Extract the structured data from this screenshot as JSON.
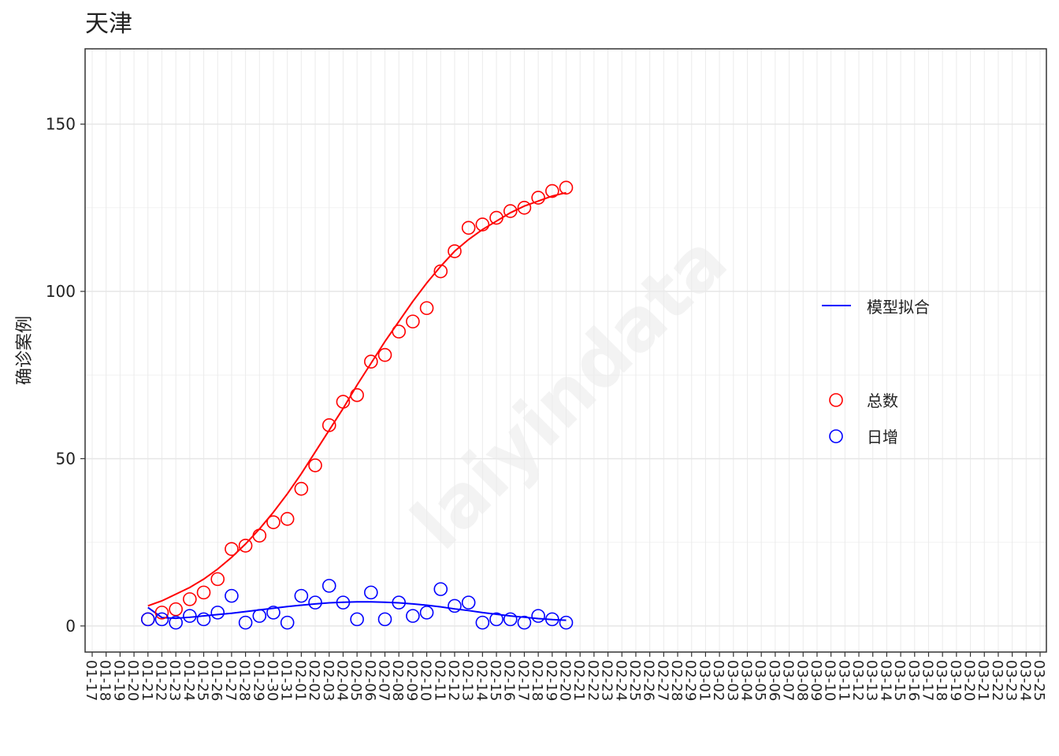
{
  "chart_data": {
    "type": "scatter",
    "title": "天津",
    "y_label": "确诊案例",
    "watermark": "laiyindata",
    "categories": [
      "01-17",
      "01-18",
      "01-19",
      "01-20",
      "01-21",
      "01-22",
      "01-23",
      "01-24",
      "01-25",
      "01-26",
      "01-27",
      "01-28",
      "01-29",
      "01-30",
      "01-31",
      "02-01",
      "02-02",
      "02-03",
      "02-04",
      "02-05",
      "02-06",
      "02-07",
      "02-08",
      "02-09",
      "02-10",
      "02-11",
      "02-12",
      "02-13",
      "02-14",
      "02-15",
      "02-16",
      "02-17",
      "02-18",
      "02-19",
      "02-20",
      "02-21",
      "02-22",
      "02-23",
      "02-24",
      "02-25",
      "02-26",
      "02-27",
      "02-28",
      "02-29",
      "03-01",
      "03-02",
      "03-03",
      "03-04",
      "03-05",
      "03-06",
      "03-07",
      "03-08",
      "03-09",
      "03-10",
      "03-11",
      "03-12",
      "03-13",
      "03-14",
      "03-15",
      "03-16",
      "03-17",
      "03-18",
      "03-19",
      "03-20",
      "03-21",
      "03-22",
      "03-23",
      "03-24",
      "03-25"
    ],
    "series": [
      {
        "name": "总数",
        "color": "#ff0000",
        "values": [
          null,
          null,
          null,
          null,
          2,
          4,
          5,
          8,
          10,
          14,
          23,
          24,
          27,
          31,
          32,
          41,
          48,
          60,
          67,
          69,
          79,
          81,
          88,
          91,
          95,
          106,
          112,
          119,
          120,
          122,
          124,
          125,
          128,
          130,
          131,
          null,
          null,
          null,
          null,
          null,
          null,
          null,
          null,
          null,
          null,
          null,
          null,
          null,
          null,
          null,
          null,
          null,
          null,
          null,
          null,
          null,
          null,
          null,
          null,
          null,
          null,
          null,
          null,
          null,
          null,
          null,
          null,
          null,
          null
        ]
      },
      {
        "name": "日增",
        "color": "#0000ff",
        "values": [
          null,
          null,
          null,
          null,
          2,
          2,
          1,
          3,
          2,
          4,
          9,
          1,
          3,
          4,
          1,
          9,
          7,
          12,
          7,
          2,
          10,
          2,
          7,
          3,
          4,
          11,
          6,
          7,
          1,
          2,
          2,
          1,
          3,
          2,
          1,
          null,
          null,
          null,
          null,
          null,
          null,
          null,
          null,
          null,
          null,
          null,
          null,
          null,
          null,
          null,
          null,
          null,
          null,
          null,
          null,
          null,
          null,
          null,
          null,
          null,
          null,
          null,
          null,
          null,
          null,
          null,
          null,
          null,
          null
        ]
      }
    ],
    "fit": {
      "name": "模型拟合",
      "color": "#0000ff",
      "lines": [
        {
          "color": "#ff0000",
          "values": [
            null,
            null,
            null,
            null,
            6,
            7.5,
            9.5,
            11.5,
            14,
            17,
            20.5,
            24.5,
            29,
            34,
            39.5,
            45.5,
            52,
            58.5,
            65,
            72,
            78.5,
            85,
            91,
            97,
            102.5,
            107.5,
            112,
            115.5,
            118.5,
            121,
            123.5,
            125.5,
            127,
            128.5,
            129.5,
            null,
            null,
            null,
            null,
            null,
            null,
            null,
            null,
            null,
            null,
            null,
            null,
            null,
            null,
            null,
            null,
            null,
            null,
            null,
            null,
            null,
            null,
            null,
            null,
            null,
            null,
            null,
            null,
            null,
            null,
            null,
            null,
            null,
            null
          ]
        },
        {
          "color": "#0000ff",
          "values": [
            null,
            null,
            null,
            null,
            5.5,
            2.5,
            2.3,
            2.6,
            3,
            3.4,
            3.8,
            4.3,
            4.8,
            5.3,
            5.8,
            6.2,
            6.6,
            6.9,
            7.1,
            7.2,
            7.2,
            7.1,
            6.9,
            6.6,
            6.2,
            5.7,
            5.1,
            4.6,
            4,
            3.5,
            3,
            2.6,
            2.2,
            1.9,
            1.7,
            null,
            null,
            null,
            null,
            null,
            null,
            null,
            null,
            null,
            null,
            null,
            null,
            null,
            null,
            null,
            null,
            null,
            null,
            null,
            null,
            null,
            null,
            null,
            null,
            null,
            null,
            null,
            null,
            null,
            null,
            null,
            null,
            null,
            null
          ]
        }
      ]
    },
    "ylim": [
      -7.8,
      172.5
    ],
    "yticks": [
      0,
      50,
      100,
      150
    ],
    "grid": true
  }
}
